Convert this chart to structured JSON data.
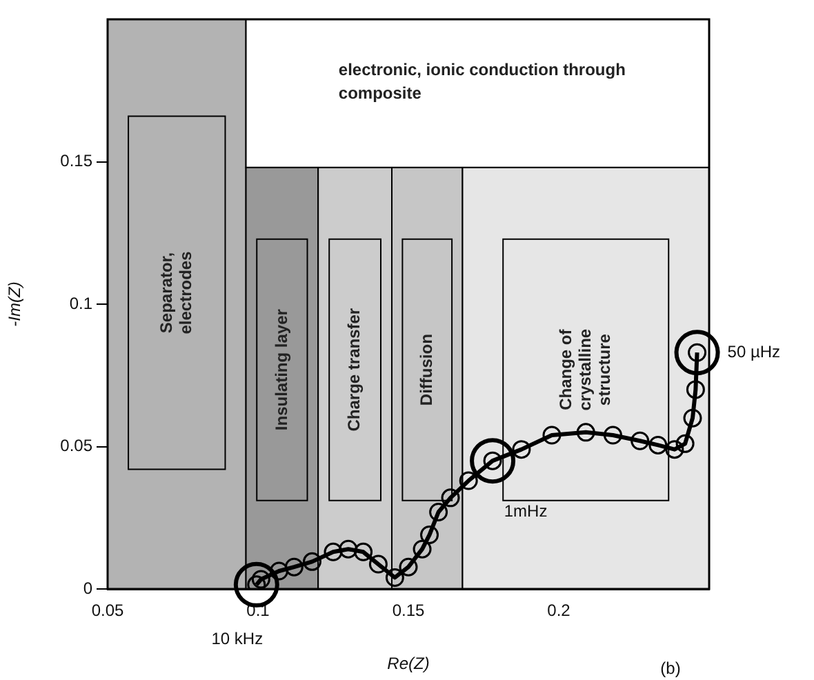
{
  "chart_data": {
    "type": "line",
    "xlabel": "Re(Z)",
    "ylabel": "-Im(Z)",
    "xlim": [
      0.05,
      0.25
    ],
    "xticks": [
      0.05,
      0.1,
      0.15,
      0.2
    ],
    "ylim": [
      0,
      0.2
    ],
    "yticks": [
      0,
      0.05,
      0.1,
      0.15
    ],
    "grid": false,
    "legend": false,
    "marker": "circle",
    "series": [
      {
        "color": "#000000",
        "x": [
          0.0995,
          0.101,
          0.107,
          0.112,
          0.118,
          0.125,
          0.13,
          0.135,
          0.14,
          0.1455,
          0.15,
          0.1546,
          0.157,
          0.16,
          0.164,
          0.17,
          0.178,
          0.1876,
          0.1977,
          0.209,
          0.218,
          0.227,
          0.233,
          0.2385,
          0.242,
          0.2445,
          0.2455,
          0.246
        ],
        "values": [
          0.0015,
          0.0034,
          0.0063,
          0.0077,
          0.0096,
          0.013,
          0.014,
          0.013,
          0.0087,
          0.004,
          0.0077,
          0.014,
          0.019,
          0.027,
          0.032,
          0.038,
          0.045,
          0.049,
          0.054,
          0.055,
          0.054,
          0.052,
          0.0505,
          0.049,
          0.051,
          0.06,
          0.07,
          0.083
        ]
      }
    ],
    "bands": [
      {
        "axis": "x",
        "from": 0.05,
        "to": 0.096,
        "label": "Separator, electrodes",
        "color": "#b3b3b3"
      },
      {
        "axis": "x",
        "from": 0.096,
        "to": 0.12,
        "label": "Insulating layer",
        "color": "#999999"
      },
      {
        "axis": "x",
        "from": 0.12,
        "to": 0.1445,
        "label": "Charge transfer",
        "color": "#cccccc"
      },
      {
        "axis": "x",
        "from": 0.1445,
        "to": 0.168,
        "label": "Diffusion",
        "color": "#c6c6c6"
      },
      {
        "axis": "x",
        "from": 0.168,
        "to": 0.25,
        "label": "Change of crystalline structure",
        "color": "#e6e6e6"
      },
      {
        "axis": "y",
        "from": 0.148,
        "to": 0.2,
        "label": "electronic, ionic conduction through composite",
        "color": "#ffffff"
      }
    ],
    "annotations": [
      {
        "text": "10 kHz",
        "x": 0.0995,
        "y": 0.0015
      },
      {
        "text": "1mHz",
        "x": 0.178,
        "y": 0.045
      },
      {
        "text": "50 µHz",
        "x": 0.246,
        "y": 0.083
      },
      "(b)"
    ]
  }
}
